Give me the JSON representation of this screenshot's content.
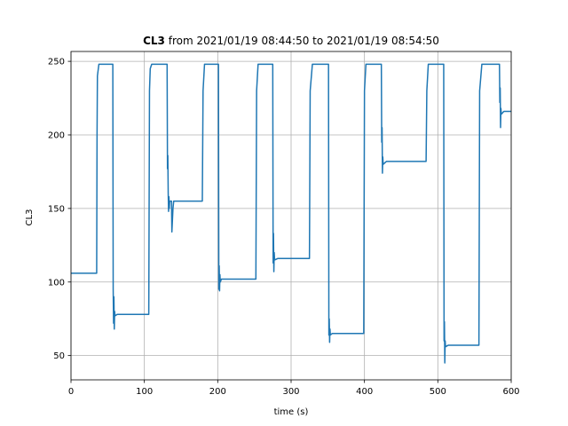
{
  "chart_data": {
    "type": "line",
    "title": {
      "bold": "CL3",
      "text": "from 2021/01/19 08:44:50 to 2021/01/19 08:54:50"
    },
    "x_label": "time (s)",
    "y_label": "CL3",
    "xlim": [
      0,
      600
    ],
    "ylim": [
      33.5,
      256.7
    ],
    "xticks": [
      0,
      100,
      200,
      300,
      400,
      500,
      600
    ],
    "yticks": [
      50,
      100,
      150,
      200,
      250
    ],
    "grid": true,
    "series": [
      {
        "name": "CL3",
        "color": "#1f77b4",
        "x": [
          0,
          35,
          35.5,
          36,
          38,
          57,
          57.5,
          58,
          58.5,
          59,
          59.5,
          60,
          63,
          106,
          107,
          108,
          110,
          131,
          131.5,
          132,
          132.5,
          133,
          133.5,
          134,
          134.5,
          137,
          137.5,
          139,
          140,
          179,
          180,
          182,
          201,
          201.5,
          202,
          202.5,
          203,
          203.5,
          205,
          252,
          253,
          255,
          275,
          275.5,
          276,
          276.5,
          277,
          277.5,
          282,
          325,
          326,
          329,
          351,
          351.5,
          352,
          352.5,
          353,
          353.5,
          356,
          399,
          400,
          402,
          423,
          423.5,
          424,
          424.5,
          425,
          425.5,
          430,
          484,
          485,
          487,
          508,
          508.5,
          509,
          509.5,
          510,
          510.5,
          514,
          556,
          557,
          560,
          584,
          584.5,
          585,
          585.5,
          586,
          586.5,
          590,
          600
        ],
        "values": [
          106,
          106,
          200,
          240,
          248,
          248,
          95,
          72,
          90,
          68,
          80,
          77,
          78,
          78,
          230,
          245,
          248,
          248,
          177,
          186,
          160,
          148,
          158,
          150,
          155,
          155,
          134,
          150,
          155,
          155,
          230,
          248,
          248,
          95,
          111,
          94,
          105,
          100,
          102,
          102,
          230,
          248,
          248,
          113,
          133,
          107,
          120,
          115,
          116,
          116,
          230,
          248,
          248,
          64,
          75,
          59,
          68,
          64,
          65,
          65,
          230,
          248,
          248,
          195,
          205,
          174,
          185,
          180,
          182,
          182,
          230,
          248,
          248,
          60,
          73,
          45,
          60,
          56,
          57,
          57,
          230,
          248,
          248,
          222,
          232,
          205,
          218,
          214,
          216,
          216
        ]
      }
    ]
  }
}
